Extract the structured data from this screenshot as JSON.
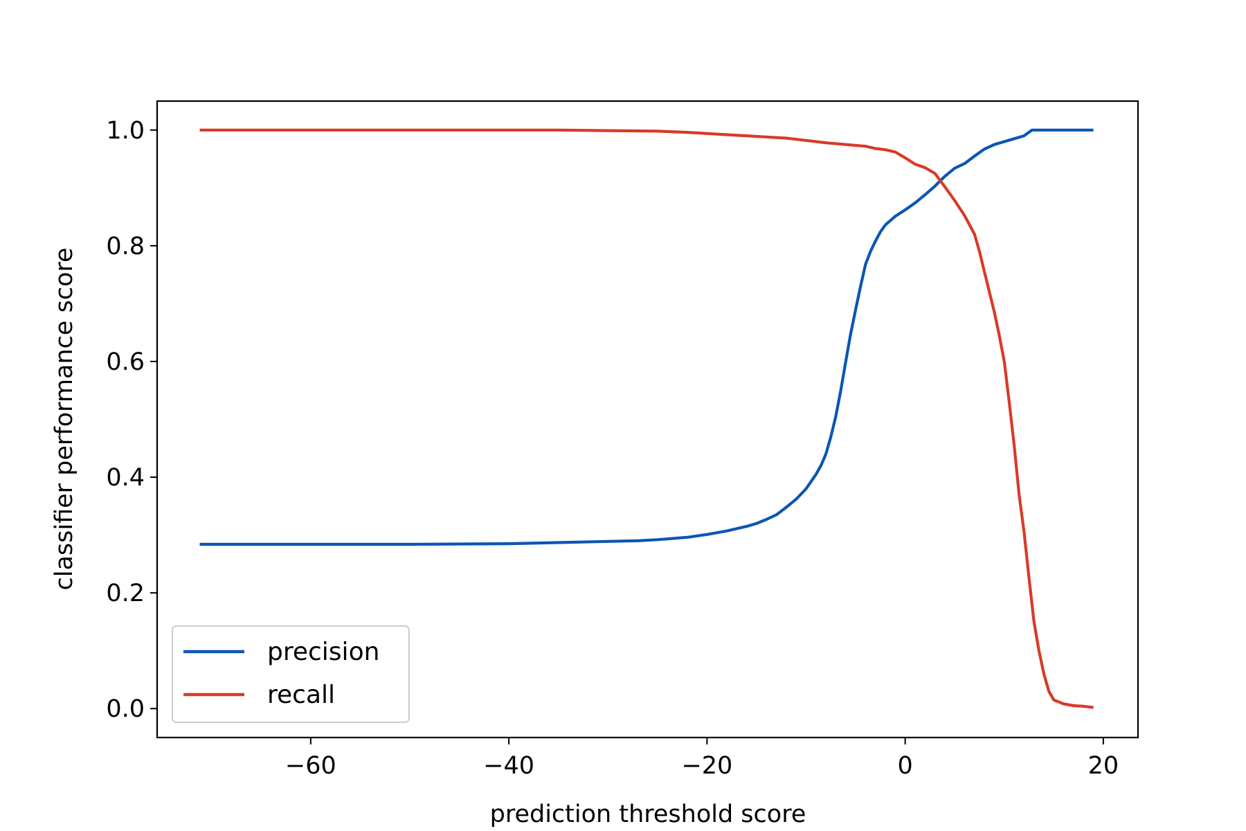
{
  "chart_data": {
    "type": "line",
    "title": "",
    "xlabel": "prediction threshold score",
    "ylabel": "classifier performance score",
    "xlim": [
      -75.5,
      23.5
    ],
    "ylim": [
      -0.05,
      1.05
    ],
    "x_ticks": [
      -60,
      -40,
      -20,
      0,
      20
    ],
    "x_tick_labels": [
      "−60",
      "−40",
      "−20",
      "0",
      "20"
    ],
    "y_ticks": [
      0.0,
      0.2,
      0.4,
      0.6,
      0.8,
      1.0
    ],
    "y_tick_labels": [
      "0.0",
      "0.2",
      "0.4",
      "0.6",
      "0.8",
      "1.0"
    ],
    "grid": false,
    "legend": {
      "position": "lower-left",
      "entries": [
        "precision",
        "recall"
      ]
    },
    "series": [
      {
        "name": "precision",
        "color": "#0b56b3",
        "points": [
          [
            -71.2,
            0.284
          ],
          [
            -60,
            0.284
          ],
          [
            -50,
            0.284
          ],
          [
            -40,
            0.285
          ],
          [
            -35,
            0.287
          ],
          [
            -30,
            0.289
          ],
          [
            -27,
            0.29
          ],
          [
            -25,
            0.292
          ],
          [
            -22,
            0.296
          ],
          [
            -20,
            0.301
          ],
          [
            -18,
            0.307
          ],
          [
            -16,
            0.315
          ],
          [
            -15,
            0.32
          ],
          [
            -14,
            0.327
          ],
          [
            -13,
            0.335
          ],
          [
            -12,
            0.348
          ],
          [
            -11,
            0.362
          ],
          [
            -10,
            0.38
          ],
          [
            -9,
            0.405
          ],
          [
            -8.5,
            0.42
          ],
          [
            -8,
            0.44
          ],
          [
            -7.5,
            0.47
          ],
          [
            -7,
            0.505
          ],
          [
            -6.5,
            0.55
          ],
          [
            -6,
            0.6
          ],
          [
            -5.5,
            0.648
          ],
          [
            -5,
            0.69
          ],
          [
            -4.5,
            0.73
          ],
          [
            -4,
            0.768
          ],
          [
            -3.5,
            0.79
          ],
          [
            -3,
            0.808
          ],
          [
            -2.5,
            0.824
          ],
          [
            -2,
            0.836
          ],
          [
            -1,
            0.851
          ],
          [
            0,
            0.862
          ],
          [
            1,
            0.874
          ],
          [
            2,
            0.888
          ],
          [
            3,
            0.903
          ],
          [
            4,
            0.92
          ],
          [
            5,
            0.934
          ],
          [
            6,
            0.942
          ],
          [
            7,
            0.955
          ],
          [
            8,
            0.967
          ],
          [
            9,
            0.975
          ],
          [
            10,
            0.98
          ],
          [
            11,
            0.985
          ],
          [
            12,
            0.99
          ],
          [
            12.8,
            1.0
          ],
          [
            19,
            1.0
          ]
        ]
      },
      {
        "name": "recall",
        "color": "#d93a27",
        "points": [
          [
            -71.2,
            1.0
          ],
          [
            -50,
            1.0
          ],
          [
            -40,
            1.0
          ],
          [
            -35,
            1.0
          ],
          [
            -30,
            0.999
          ],
          [
            -25,
            0.998
          ],
          [
            -22,
            0.996
          ],
          [
            -20,
            0.994
          ],
          [
            -18,
            0.992
          ],
          [
            -16,
            0.99
          ],
          [
            -14,
            0.988
          ],
          [
            -12,
            0.986
          ],
          [
            -10,
            0.982
          ],
          [
            -8,
            0.978
          ],
          [
            -6,
            0.975
          ],
          [
            -4,
            0.972
          ],
          [
            -3,
            0.968
          ],
          [
            -2,
            0.966
          ],
          [
            -1,
            0.962
          ],
          [
            0,
            0.952
          ],
          [
            1,
            0.941
          ],
          [
            2,
            0.935
          ],
          [
            3,
            0.925
          ],
          [
            4,
            0.902
          ],
          [
            5,
            0.878
          ],
          [
            6,
            0.852
          ],
          [
            7,
            0.82
          ],
          [
            7.5,
            0.79
          ],
          [
            8,
            0.755
          ],
          [
            8.5,
            0.72
          ],
          [
            9,
            0.685
          ],
          [
            9.5,
            0.645
          ],
          [
            10,
            0.6
          ],
          [
            10.5,
            0.53
          ],
          [
            11,
            0.455
          ],
          [
            11.5,
            0.37
          ],
          [
            12,
            0.305
          ],
          [
            12.5,
            0.225
          ],
          [
            13,
            0.15
          ],
          [
            13.5,
            0.1
          ],
          [
            14,
            0.06
          ],
          [
            14.5,
            0.03
          ],
          [
            15,
            0.015
          ],
          [
            16,
            0.008
          ],
          [
            17,
            0.005
          ],
          [
            18,
            0.004
          ],
          [
            19,
            0.002
          ]
        ]
      }
    ]
  }
}
